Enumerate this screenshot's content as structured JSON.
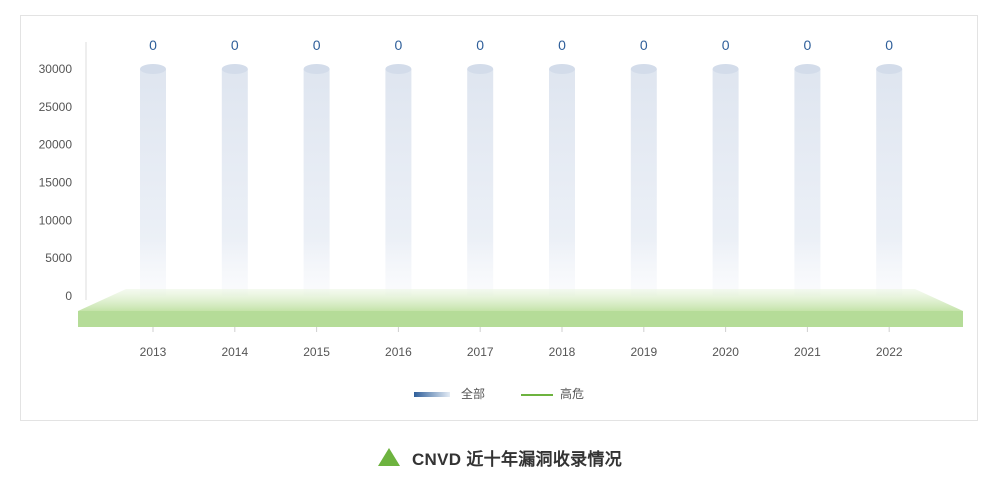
{
  "chart_data": {
    "type": "bar",
    "categories": [
      "2013",
      "2014",
      "2015",
      "2016",
      "2017",
      "2018",
      "2019",
      "2020",
      "2021",
      "2022"
    ],
    "series": [
      {
        "name": "全部",
        "values": [
          0,
          0,
          0,
          0,
          0,
          0,
          0,
          0,
          0,
          0
        ],
        "color": "#2f5f9a"
      },
      {
        "name": "高危",
        "values": [
          0,
          0,
          0,
          0,
          0,
          0,
          0,
          0,
          0,
          0
        ],
        "color": "#6db33f"
      }
    ],
    "yticks": [
      0,
      5000,
      10000,
      15000,
      20000,
      25000,
      30000
    ],
    "ylim": [
      0,
      30000
    ],
    "grid": false,
    "legend": "bottom-center",
    "caption": "CNVD 近十年漏洞收录情况"
  }
}
